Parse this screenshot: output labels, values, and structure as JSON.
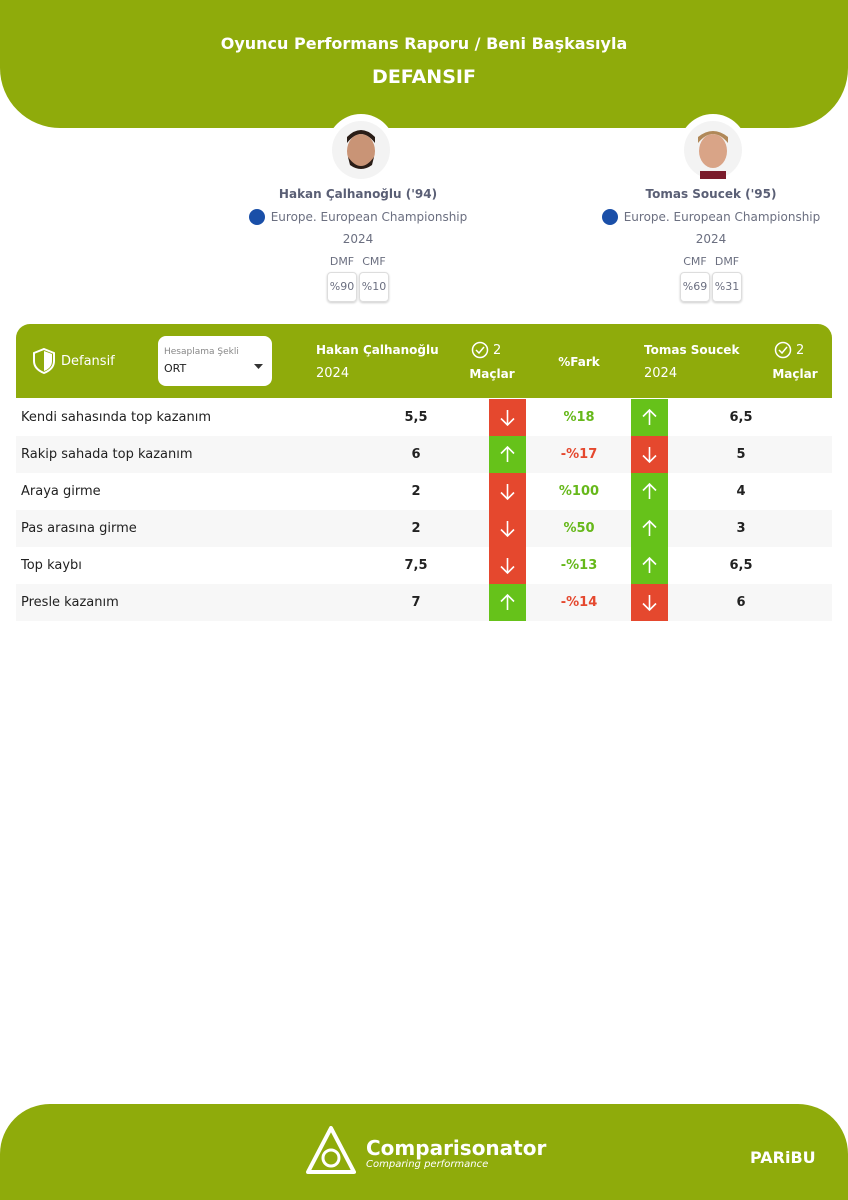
{
  "header": {
    "title": "Oyuncu Performans Raporu / Beni Başkasıyla",
    "subtitle": "DEFANSIF"
  },
  "players": [
    {
      "name": "Hakan Çalhanoğlu ('94)",
      "competition": "Europe. European Championship",
      "season": "2024",
      "positions": [
        {
          "name": "DMF",
          "share": "%90"
        },
        {
          "name": "CMF",
          "share": "%10"
        }
      ]
    },
    {
      "name": "Tomas Soucek ('95)",
      "competition": "Europe. European Championship",
      "season": "2024",
      "positions": [
        {
          "name": "CMF",
          "share": "%69"
        },
        {
          "name": "DMF",
          "share": "%31"
        }
      ]
    }
  ],
  "table": {
    "section": "Defansif",
    "dropdown": {
      "label": "Hesaplama Şekli",
      "value": "ORT"
    },
    "columns": {
      "player1": "Hakan Çalhanoğlu",
      "season1": "2024",
      "matches1": "2",
      "matches_label1": "Maçlar",
      "diff": "%Fark",
      "player2": "Tomas Soucek",
      "season2": "2024",
      "matches2": "2",
      "matches_label2": "Maçlar"
    },
    "rows": [
      {
        "label": "Kendi sahasında top kazanım",
        "v1": "5,5",
        "dir1": "down",
        "diff": "%18",
        "dir2": "up",
        "v2": "6,5"
      },
      {
        "label": "Rakip sahada top kazanım",
        "v1": "6",
        "dir1": "up",
        "diff": "-%17",
        "dir2": "down",
        "v2": "5"
      },
      {
        "label": "Araya girme",
        "v1": "2",
        "dir1": "down",
        "diff": "%100",
        "dir2": "up",
        "v2": "4"
      },
      {
        "label": "Pas arasına girme",
        "v1": "2",
        "dir1": "down",
        "diff": "%50",
        "dir2": "up",
        "v2": "3"
      },
      {
        "label": "Top kaybı",
        "v1": "7,5",
        "dir1": "down",
        "diff": "-%13",
        "dir2": "up",
        "v2": "6,5"
      },
      {
        "label": "Presle kazanım",
        "v1": "7",
        "dir1": "up",
        "diff": "-%14",
        "dir2": "down",
        "v2": "6"
      }
    ]
  },
  "footer": {
    "brand": "Comparisonator",
    "tagline": "Comparing performance",
    "sponsor": "PARiBU"
  }
}
